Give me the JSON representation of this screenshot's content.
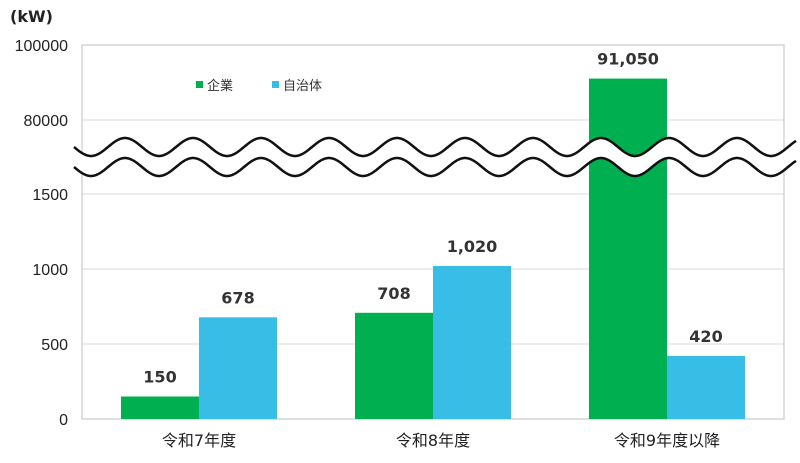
{
  "chart_data": {
    "type": "bar",
    "unit_label": "(kW)",
    "categories": [
      "令和7年度",
      "令和8年度",
      "令和9年度以降"
    ],
    "series": [
      {
        "name": "企業",
        "color": "#00b050",
        "values": [
          150,
          708,
          91050
        ],
        "labels": [
          "150",
          "708",
          "91,050"
        ]
      },
      {
        "name": "自治体",
        "color": "#38bde6",
        "values": [
          678,
          1020,
          420
        ],
        "labels": [
          "678",
          "1,020",
          "420"
        ]
      }
    ],
    "y_axis_break": {
      "lower_range": [
        0,
        1500
      ],
      "upper_range": [
        80000,
        100000
      ]
    },
    "y_ticks_lower": [
      "0",
      "500",
      "1000",
      "1500"
    ],
    "y_ticks_upper": [
      "80000",
      "100000"
    ],
    "legend_position": "top-left",
    "grid": true
  }
}
